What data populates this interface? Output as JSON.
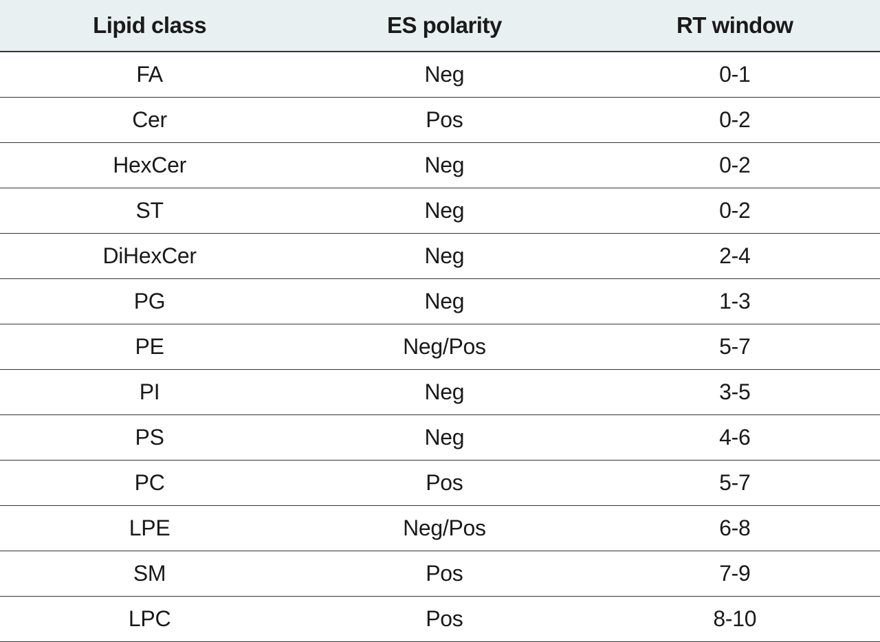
{
  "table": {
    "type": "table",
    "columns": [
      {
        "label": "Lipid class",
        "align": "center",
        "width_pct": 34
      },
      {
        "label": "ES polarity",
        "align": "center",
        "width_pct": 33
      },
      {
        "label": "RT window",
        "align": "center",
        "width_pct": 33
      }
    ],
    "rows": [
      [
        "FA",
        "Neg",
        "0-1"
      ],
      [
        "Cer",
        "Pos",
        "0-2"
      ],
      [
        "HexCer",
        "Neg",
        "0-2"
      ],
      [
        "ST",
        "Neg",
        "0-2"
      ],
      [
        "DiHexCer",
        "Neg",
        "2-4"
      ],
      [
        "PG",
        "Neg",
        "1-3"
      ],
      [
        "PE",
        "Neg/Pos",
        "5-7"
      ],
      [
        "PI",
        "Neg",
        "3-5"
      ],
      [
        "PS",
        "Neg",
        "4-6"
      ],
      [
        "PC",
        "Pos",
        "5-7"
      ],
      [
        "LPE",
        "Neg/Pos",
        "6-8"
      ],
      [
        "SM",
        "Pos",
        "7-9"
      ],
      [
        "LPC",
        "Pos",
        "8-10"
      ]
    ],
    "style": {
      "header_background": "#e8f0f2",
      "header_font_weight": 700,
      "header_font_size_pt": 25,
      "cell_font_size_pt": 24,
      "text_color": "#1a1a1a",
      "header_border_bottom": "2px solid #333333",
      "row_border_bottom": "1px solid #333333",
      "background_color": "#ffffff",
      "font_family": "sans-serif"
    }
  }
}
